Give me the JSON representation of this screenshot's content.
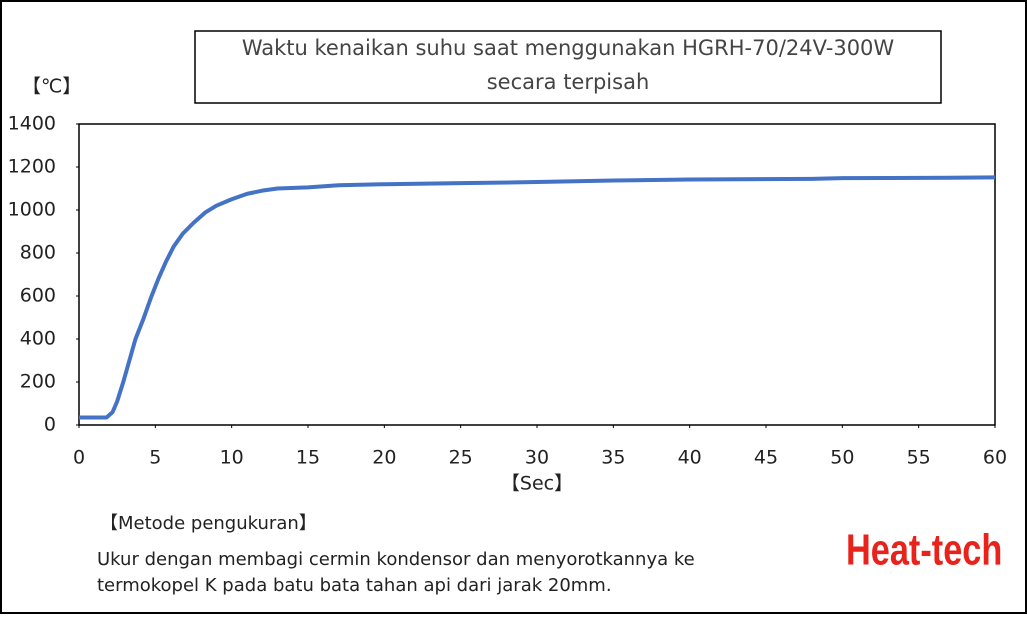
{
  "chart_data": {
    "type": "line",
    "title": [
      "Waktu kenaikan suhu saat menggunakan HGRH-70/24V-300W",
      "secara terpisah"
    ],
    "y_label": "【℃】",
    "x_label": "【Sec】",
    "x": [
      0,
      1.8,
      2.2,
      2.5,
      2.9,
      3.3,
      3.7,
      4.2,
      4.7,
      5.2,
      5.7,
      6.2,
      6.8,
      7.5,
      8.3,
      9,
      10,
      11,
      12,
      13,
      15,
      17,
      20,
      25,
      30,
      35,
      40,
      48,
      50,
      57,
      60
    ],
    "values": [
      35,
      35,
      60,
      110,
      200,
      300,
      400,
      490,
      590,
      680,
      760,
      830,
      890,
      940,
      990,
      1020,
      1050,
      1075,
      1090,
      1100,
      1105,
      1115,
      1120,
      1125,
      1130,
      1137,
      1142,
      1145,
      1148,
      1150,
      1152
    ],
    "color": "#4472c4",
    "xlim": [
      0,
      60
    ],
    "xticks": [
      0,
      5,
      10,
      15,
      20,
      25,
      30,
      35,
      40,
      45,
      50,
      55,
      60
    ],
    "ylim": [
      0,
      1400
    ],
    "yticks": [
      0,
      200,
      400,
      600,
      800,
      1000,
      1200,
      1400
    ]
  },
  "notes": {
    "heading": "【Metode pengukuran】",
    "lines": [
      "Ukur dengan membagi cermin kondensor dan menyorotkannya ke",
      "termokopel K pada batu bata tahan api dari jarak 20mm."
    ]
  },
  "logo": "Heat-tech"
}
